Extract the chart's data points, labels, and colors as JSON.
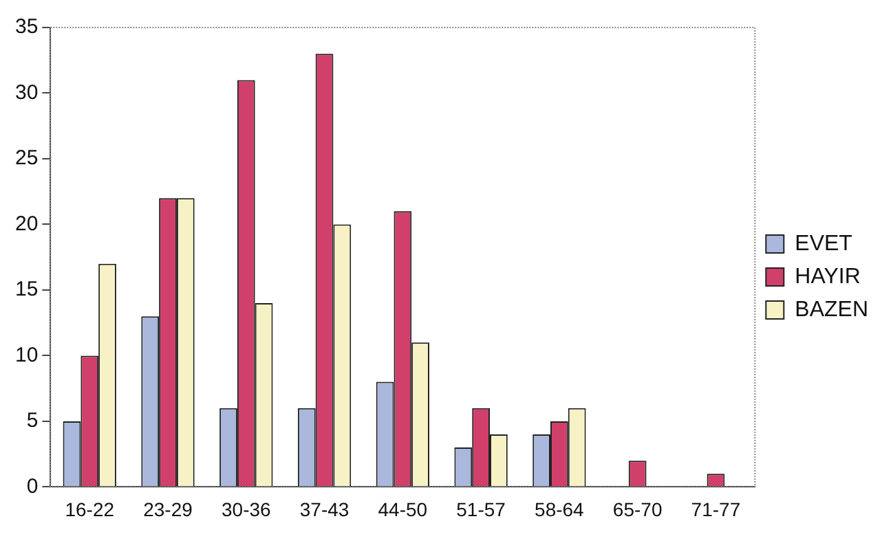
{
  "chart_data": {
    "type": "bar",
    "categories": [
      "16-22",
      "23-29",
      "30-36",
      "37-43",
      "44-50",
      "51-57",
      "58-64",
      "65-70",
      "71-77"
    ],
    "series": [
      {
        "name": "EVET",
        "color": "#a9b8dc",
        "values": [
          5,
          13,
          6,
          6,
          8,
          3,
          4,
          0,
          0
        ]
      },
      {
        "name": "HAYIR",
        "color": "#d0406a",
        "values": [
          10,
          22,
          31,
          33,
          21,
          6,
          5,
          2,
          1
        ]
      },
      {
        "name": "BAZEN",
        "color": "#f7f2c6",
        "values": [
          17,
          22,
          14,
          20,
          11,
          4,
          6,
          0,
          0
        ]
      }
    ],
    "ylim": [
      0,
      35
    ],
    "yticks": [
      0,
      5,
      10,
      15,
      20,
      25,
      30,
      35
    ],
    "grid": false,
    "legend": "right"
  }
}
